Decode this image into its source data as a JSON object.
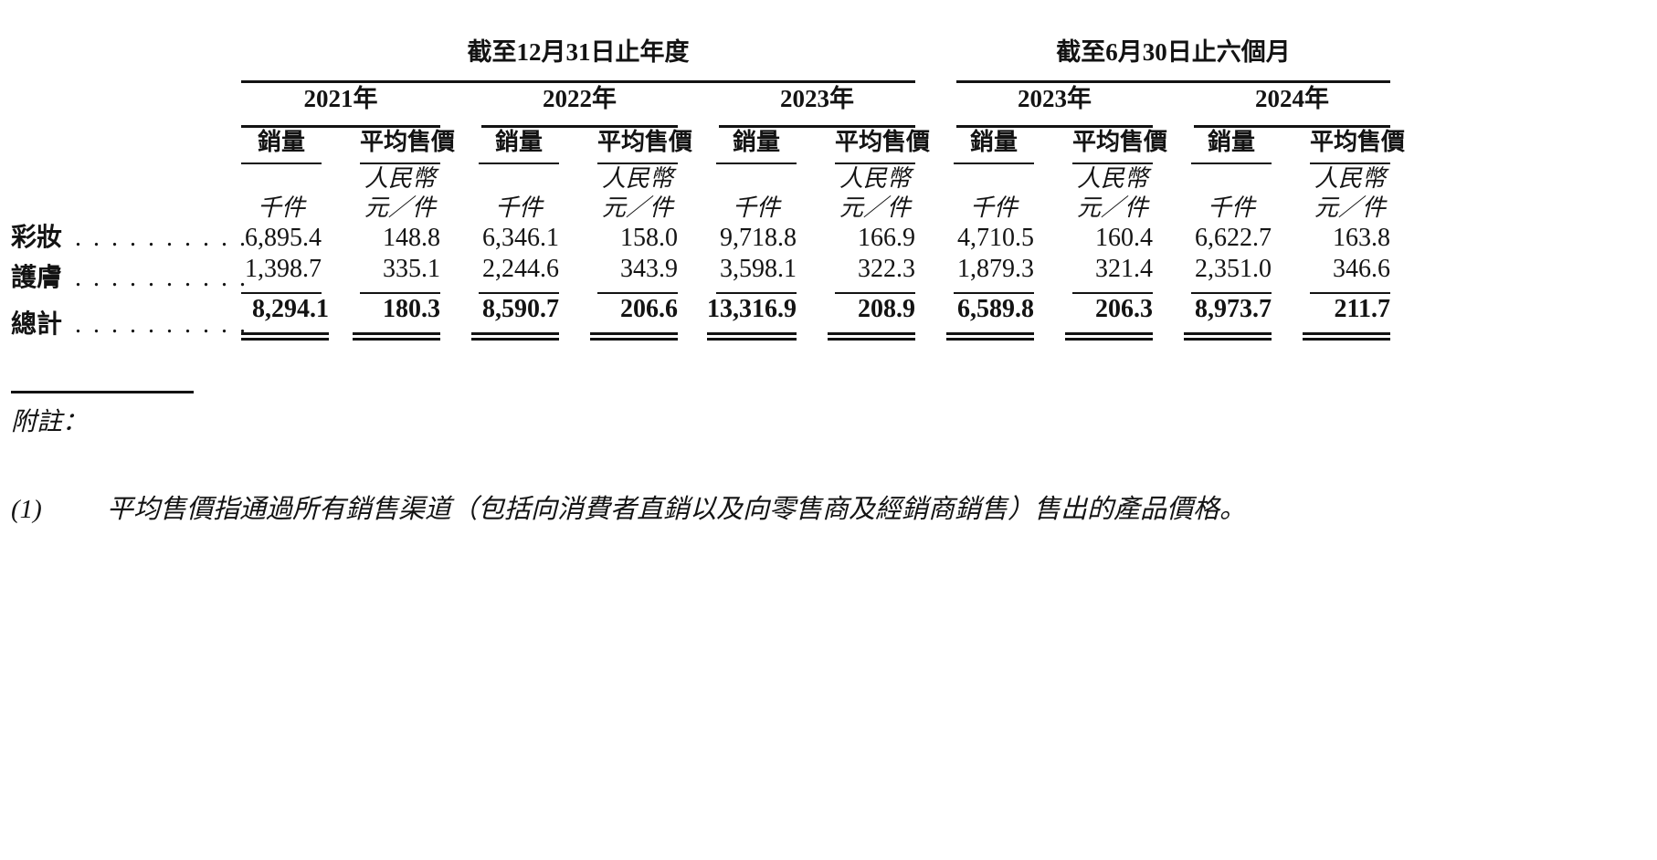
{
  "meta": {
    "ink_color": "#131313",
    "background_color": "#ffffff"
  },
  "table": {
    "group_headers": [
      {
        "label": "截至12月31日止年度"
      },
      {
        "label": "截至6月30日止六個月"
      }
    ],
    "year_headers": [
      "2021年",
      "2022年",
      "2023年",
      "2023年",
      "2024年"
    ],
    "sub_headers": {
      "volume": "銷量",
      "asp": "平均售價"
    },
    "currency_label": "人民幣",
    "unit_volume": "千件",
    "unit_asp": "元／件",
    "dot_leader": ". . . . . . . . . .",
    "rows": [
      {
        "label": "彩妝",
        "values": [
          "6,895.4",
          "148.8",
          "6,346.1",
          "158.0",
          "9,718.8",
          "166.9",
          "4,710.5",
          "160.4",
          "6,622.7",
          "163.8"
        ]
      },
      {
        "label": "護膚",
        "values": [
          "1,398.7",
          "335.1",
          "2,244.6",
          "343.9",
          "3,598.1",
          "322.3",
          "1,879.3",
          "321.4",
          "2,351.0",
          "346.6"
        ]
      }
    ],
    "total_row": {
      "label": "總計",
      "values": [
        "8,294.1",
        "180.3",
        "8,590.7",
        "206.6",
        "13,316.9",
        "208.9",
        "6,589.8",
        "206.3",
        "8,973.7",
        "211.7"
      ]
    }
  },
  "notes": {
    "heading": "附註：",
    "items": [
      {
        "marker": "(1)",
        "text": "平均售價指通過所有銷售渠道（包括向消費者直銷以及向零售商及經銷商銷售）售出的產品價格。"
      }
    ]
  }
}
